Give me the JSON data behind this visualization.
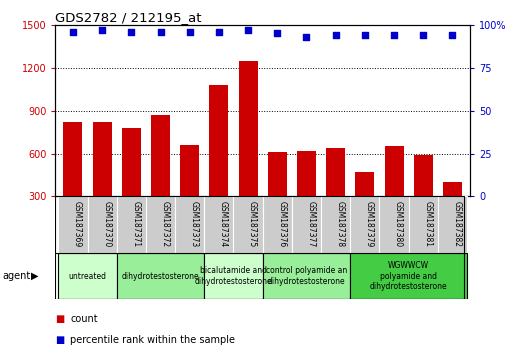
{
  "title": "GDS2782 / 212195_at",
  "categories": [
    "GSM187369",
    "GSM187370",
    "GSM187371",
    "GSM187372",
    "GSM187373",
    "GSM187374",
    "GSM187375",
    "GSM187376",
    "GSM187377",
    "GSM187378",
    "GSM187379",
    "GSM187380",
    "GSM187381",
    "GSM187382"
  ],
  "bar_values": [
    820,
    820,
    780,
    870,
    660,
    1080,
    1250,
    610,
    615,
    640,
    470,
    650,
    590,
    400
  ],
  "bar_color": "#cc0000",
  "scatter_values": [
    96,
    97,
    96,
    96,
    96,
    96,
    97,
    95,
    93,
    94,
    94,
    94,
    94,
    94
  ],
  "scatter_color": "#0000cc",
  "ylim_left": [
    300,
    1500
  ],
  "ylim_right": [
    0,
    100
  ],
  "yticks_left": [
    300,
    600,
    900,
    1200,
    1500
  ],
  "yticks_right": [
    0,
    25,
    50,
    75,
    100
  ],
  "ylabel_left_color": "#cc0000",
  "ylabel_right_color": "#0000cc",
  "dotted_lines": [
    600,
    900,
    1200,
    1500
  ],
  "groups": [
    {
      "label": "untreated",
      "start": 0,
      "end": 1,
      "color": "#ccffcc"
    },
    {
      "label": "dihydrotestosterone",
      "start": 2,
      "end": 4,
      "color": "#99ee99"
    },
    {
      "label": "bicalutamide and\ndihydrotestosterone",
      "start": 5,
      "end": 6,
      "color": "#ccffcc"
    },
    {
      "label": "control polyamide an\ndihydrotestosterone",
      "start": 7,
      "end": 9,
      "color": "#99ee99"
    },
    {
      "label": "WGWWCW\npolyamide and\ndihydrotestosterone",
      "start": 10,
      "end": 13,
      "color": "#44cc44"
    }
  ],
  "agent_label": "agent",
  "legend_count_label": "count",
  "legend_percentile_label": "percentile rank within the sample",
  "background_color": "#ffffff",
  "tick_label_bg": "#cccccc"
}
